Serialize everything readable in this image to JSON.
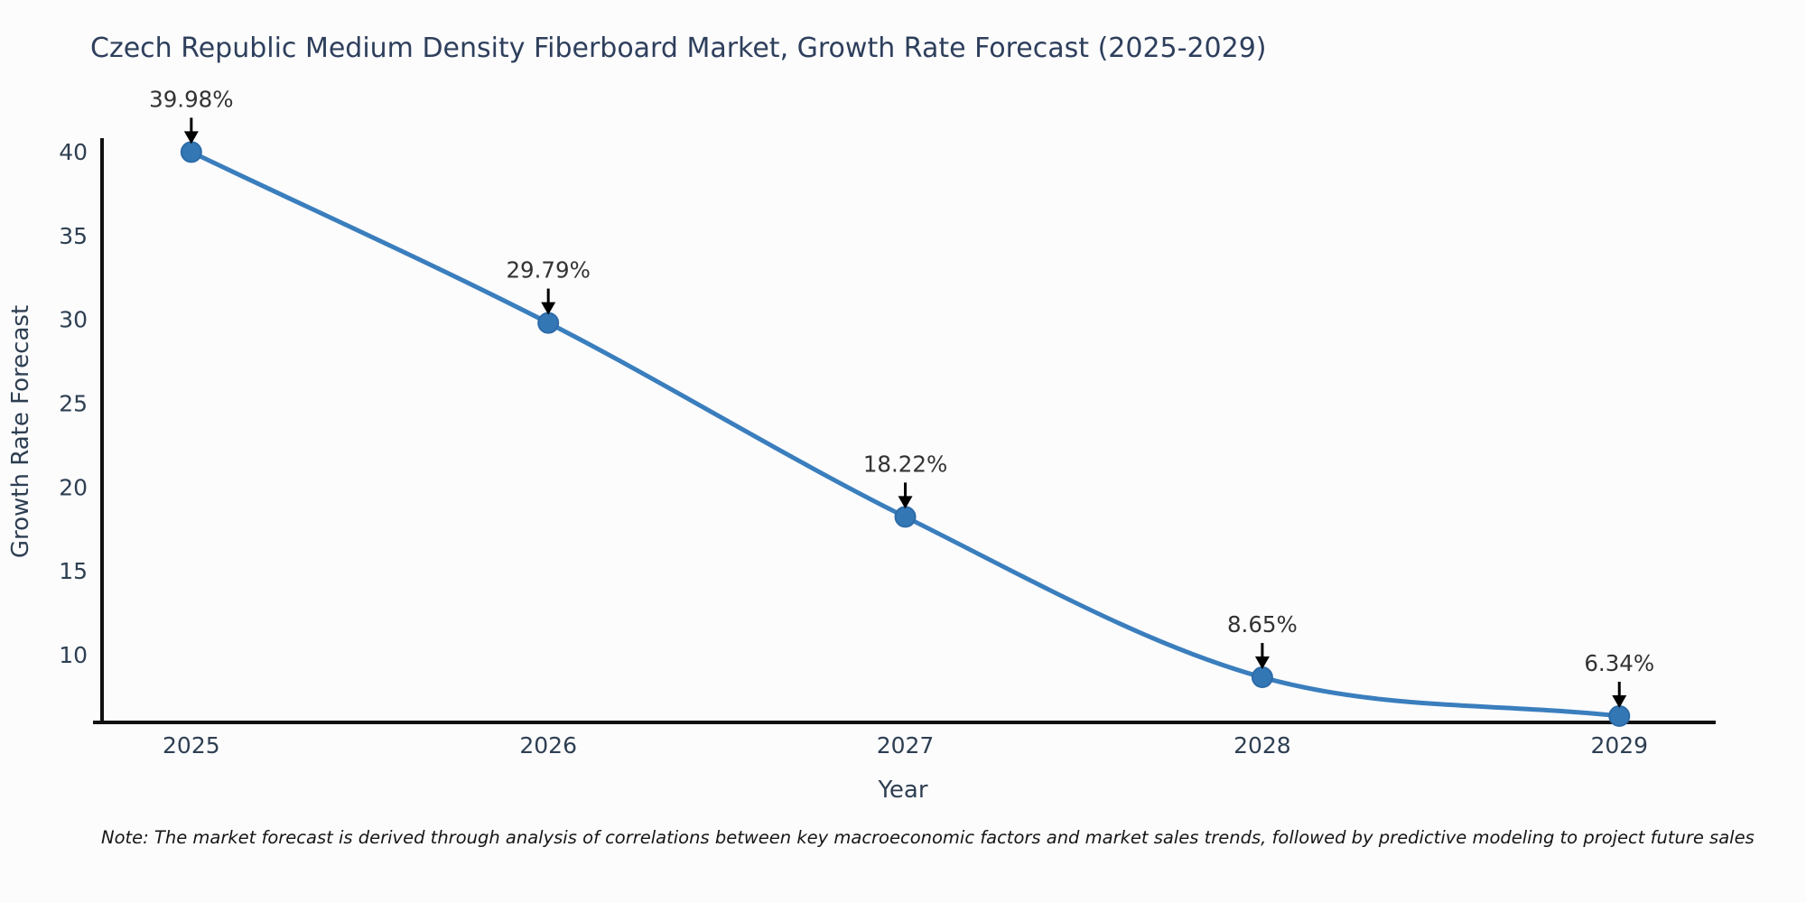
{
  "chart_data": {
    "type": "line",
    "title": "Czech Republic Medium Density Fiberboard Market, Growth Rate Forecast (2025-2029)",
    "x": [
      2025,
      2026,
      2027,
      2028,
      2029
    ],
    "series": [
      {
        "name": "Growth Rate Forecast",
        "values": [
          39.98,
          29.79,
          18.22,
          8.65,
          6.34
        ]
      }
    ],
    "point_labels": [
      "39.98%",
      "29.79%",
      "18.22%",
      "8.65%",
      "6.34%"
    ],
    "xlabel": "Year",
    "ylabel": "Growth Rate Forecast",
    "xticks": [
      2025,
      2026,
      2027,
      2028,
      2029
    ],
    "yticks": [
      10,
      15,
      20,
      25,
      30,
      35,
      40
    ],
    "xlim": [
      2024.75,
      2029.27
    ],
    "ylim": [
      5.96,
      40.81
    ],
    "grid": false,
    "legend": "none",
    "colors": {
      "line": "#3a7ebd",
      "marker": "#3377b5",
      "marker_edge": "#2d6ba8",
      "axis": "#111111",
      "tick_text": "#2e3f52",
      "annotation_text": "#333333",
      "annotation_arrow": "#000000",
      "background": "#fcfcfd"
    }
  },
  "note": "Note: The market forecast is derived through analysis of correlations between key macroeconomic factors and market sales trends, followed by predictive modeling to project future sales"
}
